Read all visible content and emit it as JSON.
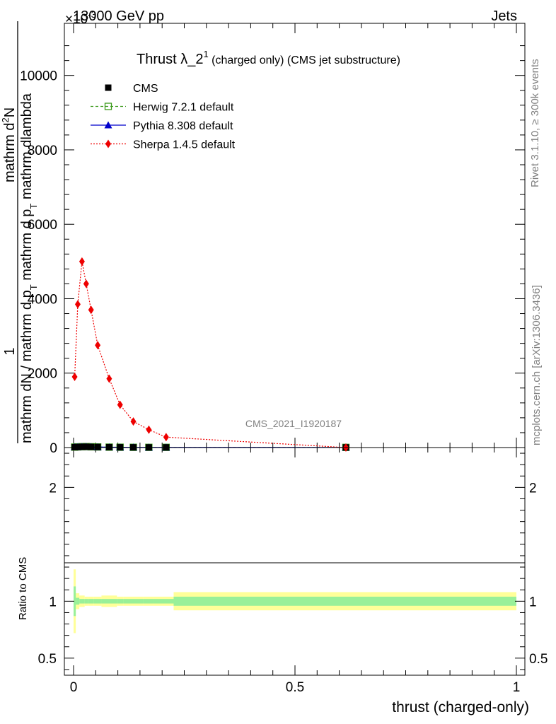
{
  "chart_data": {
    "type": "line",
    "header": {
      "left": "13000 GeV pp",
      "right": "Jets",
      "exponent_base": "×10",
      "exponent": "-3"
    },
    "title": {
      "main": "Thrust λ_2",
      "sup": "1",
      "sub": " (charged only) (CMS jet substructure)"
    },
    "ylabel_parts": [
      "1",
      "mathrm dN / mathrm d p",
      "T",
      " mathrm d p",
      "T",
      " mathrm dlambda",
      "mathrm d",
      "2",
      "N"
    ],
    "ylabel_text": "1 / mathrm dN / mathrm d p_T mathrm d p_T mathrm dlambda · mathrm d²N",
    "xlabel": "thrust (charged-only)",
    "ratio_ylabel": "Ratio to CMS",
    "side_label_top": "Rivet 3.1.10, ≥ 300k events",
    "side_label_bottom": "mcplots.cern.ch [arXiv:1306.3436]",
    "watermark": "CMS_2021_I1920187",
    "xlim": [
      0,
      1
    ],
    "ylim": [
      0,
      11400
    ],
    "ratio_ylim": [
      0.35,
      2.35
    ],
    "y_ticks": [
      {
        "v": 0,
        "label": "0"
      },
      {
        "v": 2000,
        "label": "2000"
      },
      {
        "v": 4000,
        "label": "4000"
      },
      {
        "v": 6000,
        "label": "6000"
      },
      {
        "v": 8000,
        "label": "8000"
      },
      {
        "v": 10000,
        "label": "10000"
      }
    ],
    "x_ticks": [
      {
        "v": 0,
        "label": "0"
      },
      {
        "v": 0.5,
        "label": "0.5"
      },
      {
        "v": 1,
        "label": "1"
      }
    ],
    "ratio_ticks": [
      {
        "v": 0.5,
        "label": "0.5"
      },
      {
        "v": 1,
        "label": "1"
      },
      {
        "v": 2,
        "label": "2"
      }
    ],
    "legend": [
      {
        "name": "CMS",
        "color": "#000000",
        "marker": "square"
      },
      {
        "name": "Herwig 7.2.1 default",
        "color": "#3a9a1a",
        "marker": "open-square",
        "dash": "4,3"
      },
      {
        "name": "Pythia 8.308 default",
        "color": "#0000cc",
        "marker": "triangle",
        "dash": ""
      },
      {
        "name": "Sherpa 1.4.5 default",
        "color": "#ee0000",
        "marker": "diamond",
        "dash": "2,2"
      }
    ],
    "x": [
      0.0025,
      0.0095,
      0.019,
      0.0285,
      0.0395,
      0.0545,
      0.0805,
      0.105,
      0.135,
      0.17,
      0.209,
      0.615
    ],
    "series": [
      {
        "name": "CMS",
        "values": [
          10,
          15,
          20,
          22,
          18,
          15,
          10,
          8,
          6,
          5,
          5,
          4
        ]
      },
      {
        "name": "Herwig 7.2.1 default",
        "values": [
          12,
          18,
          22,
          24,
          20,
          16,
          11,
          8,
          6,
          5,
          5,
          4
        ]
      },
      {
        "name": "Pythia 8.308 default",
        "values": [
          11,
          16,
          21,
          23,
          19,
          15,
          10,
          8,
          6,
          5,
          5,
          4
        ]
      },
      {
        "name": "Sherpa 1.4.5 default",
        "values": [
          1900,
          3850,
          5000,
          4400,
          3700,
          2750,
          1850,
          1150,
          700,
          480,
          280,
          0
        ]
      }
    ],
    "ratio_bins": [
      {
        "lo": 0.0,
        "hi": 0.005,
        "g": 0.13,
        "y": 0.28
      },
      {
        "lo": 0.005,
        "hi": 0.013,
        "g": 0.03,
        "y": 0.07
      },
      {
        "lo": 0.013,
        "hi": 0.025,
        "g": 0.02,
        "y": 0.05
      },
      {
        "lo": 0.025,
        "hi": 0.033,
        "g": 0.02,
        "y": 0.04
      },
      {
        "lo": 0.033,
        "hi": 0.046,
        "g": 0.02,
        "y": 0.04
      },
      {
        "lo": 0.046,
        "hi": 0.063,
        "g": 0.02,
        "y": 0.04
      },
      {
        "lo": 0.063,
        "hi": 0.098,
        "g": 0.02,
        "y": 0.05
      },
      {
        "lo": 0.098,
        "hi": 0.112,
        "g": 0.02,
        "y": 0.04
      },
      {
        "lo": 0.112,
        "hi": 0.158,
        "g": 0.02,
        "y": 0.04
      },
      {
        "lo": 0.158,
        "hi": 0.182,
        "g": 0.02,
        "y": 0.04
      },
      {
        "lo": 0.182,
        "hi": 0.226,
        "g": 0.02,
        "y": 0.04
      },
      {
        "lo": 0.226,
        "hi": 1.0,
        "g": 0.04,
        "y": 0.08
      }
    ]
  }
}
